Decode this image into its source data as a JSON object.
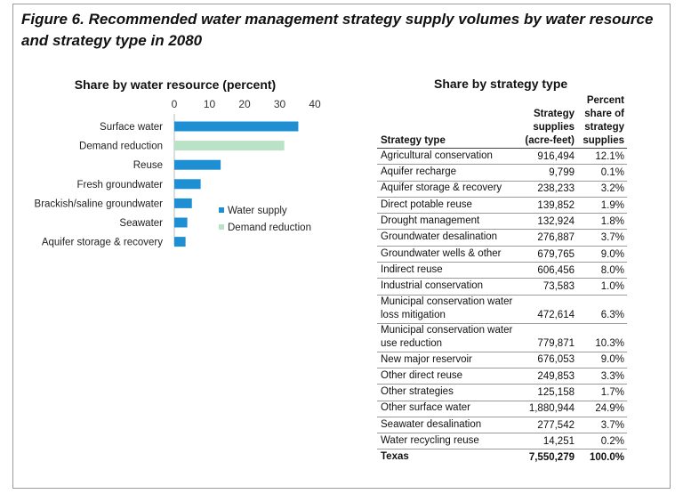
{
  "figure_title": "Figure 6. Recommended water management strategy supply volumes by water resource and strategy type in 2080",
  "colors": {
    "water_supply": "#1f8fd4",
    "demand_reduction": "#b9e2c6"
  },
  "chart_data": {
    "type": "bar",
    "orientation": "horizontal",
    "title": "Share by water resource (percent)",
    "categories": [
      "Surface water",
      "Demand reduction",
      "Reuse",
      "Fresh groundwater",
      "Brackish/saline groundwater",
      "Seawater",
      "Aquifer storage & recovery"
    ],
    "values": [
      35.3,
      31.3,
      13.2,
      7.5,
      5.0,
      3.7,
      3.2
    ],
    "category_series": [
      "Water supply",
      "Demand reduction",
      "Water supply",
      "Water supply",
      "Water supply",
      "Water supply",
      "Water supply"
    ],
    "legend": [
      "Water supply",
      "Demand reduction"
    ],
    "legend_position": "right",
    "xlim": [
      0,
      40
    ],
    "x_ticks": [
      "0",
      "10",
      "20",
      "30",
      "40"
    ],
    "x_axis_position": "top",
    "grid": false
  },
  "table": {
    "title": "Share by strategy type",
    "headers": [
      "Strategy type",
      "Strategy supplies (acre-feet)",
      "Percent share of strategy supplies"
    ],
    "rows": [
      {
        "type": "Agricultural conservation",
        "supplies": "916,494",
        "pct": "12.1%"
      },
      {
        "type": "Aquifer recharge",
        "supplies": "9,799",
        "pct": "0.1%"
      },
      {
        "type": "Aquifer storage & recovery",
        "supplies": "238,233",
        "pct": "3.2%"
      },
      {
        "type": "Direct potable reuse",
        "supplies": "139,852",
        "pct": "1.9%"
      },
      {
        "type": "Drought management",
        "supplies": "132,924",
        "pct": "1.8%"
      },
      {
        "type": "Groundwater desalination",
        "supplies": "276,887",
        "pct": "3.7%"
      },
      {
        "type": "Groundwater wells & other",
        "supplies": "679,765",
        "pct": "9.0%"
      },
      {
        "type": "Indirect reuse",
        "supplies": "606,456",
        "pct": "8.0%"
      },
      {
        "type": "Industrial conservation",
        "supplies": "73,583",
        "pct": "1.0%"
      },
      {
        "type": "Municipal conservation water loss mitigation",
        "supplies": "472,614",
        "pct": "6.3%"
      },
      {
        "type": "Municipal conservation water use reduction",
        "supplies": "779,871",
        "pct": "10.3%"
      },
      {
        "type": "New major reservoir",
        "supplies": "676,053",
        "pct": "9.0%"
      },
      {
        "type": "Other direct reuse",
        "supplies": "249,853",
        "pct": "3.3%"
      },
      {
        "type": "Other strategies",
        "supplies": "125,158",
        "pct": "1.7%"
      },
      {
        "type": "Other surface water",
        "supplies": "1,880,944",
        "pct": "24.9%"
      },
      {
        "type": "Seawater desalination",
        "supplies": "277,542",
        "pct": "3.7%"
      },
      {
        "type": "Water recycling reuse",
        "supplies": "14,251",
        "pct": "0.2%"
      }
    ],
    "total": {
      "type": "Texas",
      "supplies": "7,550,279",
      "pct": "100.0%"
    }
  }
}
